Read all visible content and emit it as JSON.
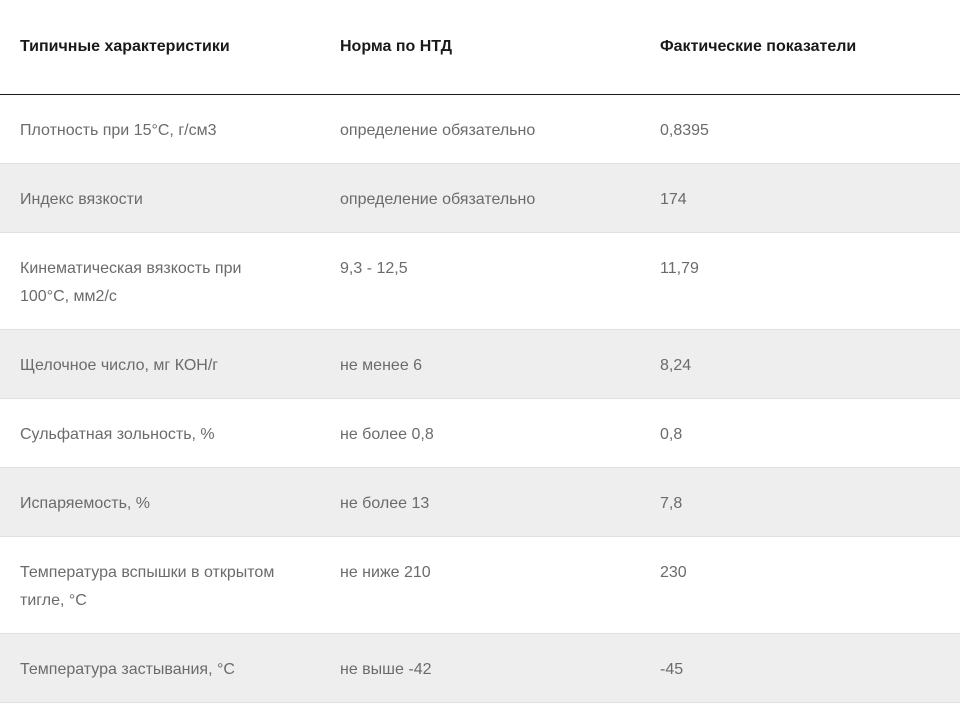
{
  "table": {
    "headers": {
      "characteristic": "Типичные характеристики",
      "norm": "Норма по НТД",
      "actual": "Фактические показатели"
    },
    "rows": [
      {
        "characteristic": "Плотность при 15°С, г/см3",
        "norm": "определение обязательно",
        "actual": "0,8395"
      },
      {
        "characteristic": "Индекс вязкости",
        "norm": "определение обязательно",
        "actual": "174"
      },
      {
        "characteristic": "Кинематическая вязкость при 100°С, мм2/с",
        "norm": "9,3 - 12,5",
        "actual": "11,79"
      },
      {
        "characteristic": "Щелочное число, мг КОН/г",
        "norm": "не менее 6",
        "actual": "8,24"
      },
      {
        "characteristic": "Сульфатная зольность, %",
        "norm": "не более 0,8",
        "actual": "0,8"
      },
      {
        "characteristic": "Испаряемость, %",
        "norm": "не более 13",
        "actual": "7,8"
      },
      {
        "characteristic": "Температура вспышки в открытом тигле, °С",
        "norm": "не ниже 210",
        "actual": "230"
      },
      {
        "characteristic": "Температура застывания, °С",
        "norm": "не выше -42",
        "actual": "-45"
      }
    ]
  },
  "colors": {
    "header_text": "#1a1a1a",
    "body_text": "#6b6b6b",
    "alt_row_bg": "#eeeeee",
    "row_divider": "#e0e0e0"
  }
}
